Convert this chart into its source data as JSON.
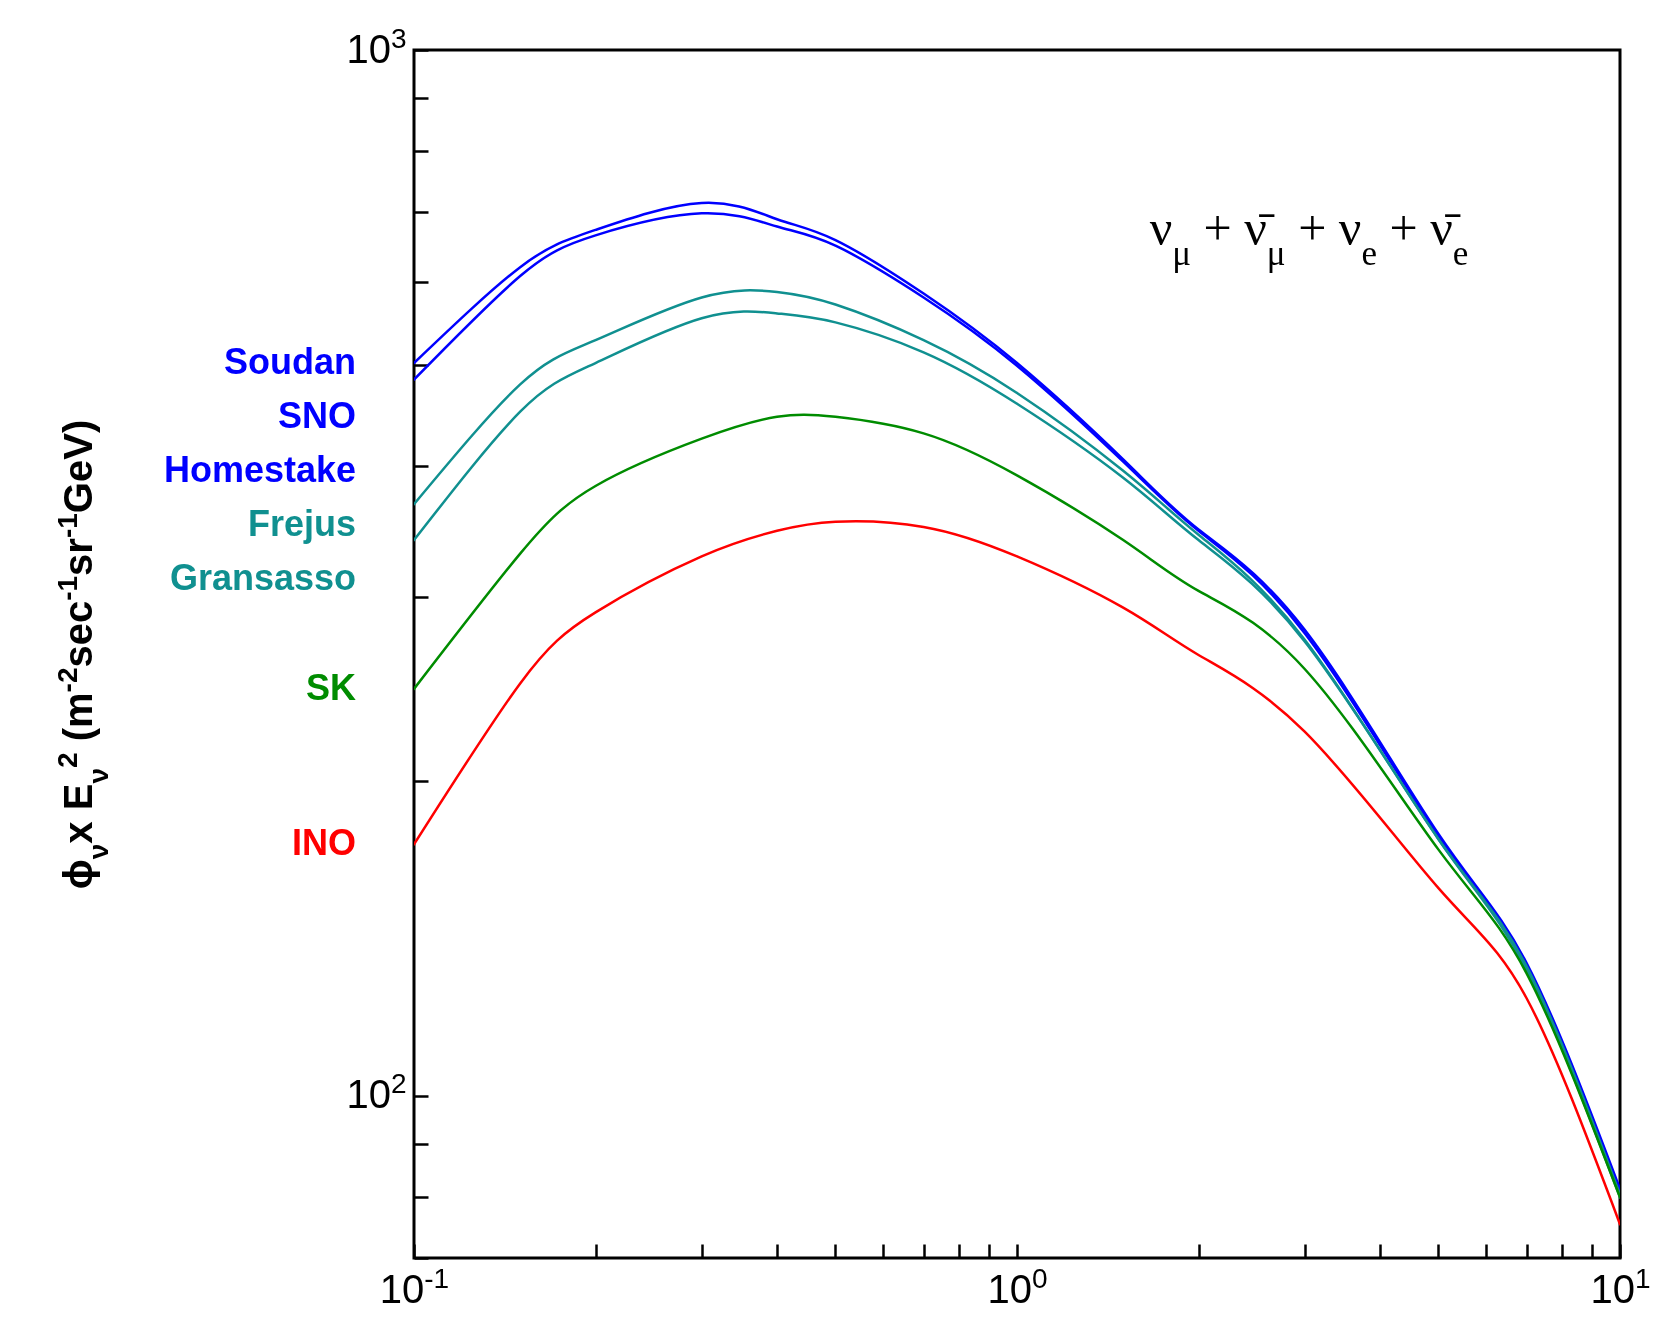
{
  "chart_data": {
    "type": "line",
    "ylabel": "ϕ$_{ν}$x E$_{ν}$$^{2}$ (m$^{-2}$sec$^{-1}$sr$^{-1}$GeV)",
    "annotations": [
      "ν$_{μ}$ + ν̄$_{μ}$ + ν$_{e}$ + ν̄$_{e}$",
      {
        "text": "Homestake",
        "x": 0.1,
        "y": 484
      }
    ],
    "x": [
      0.1,
      0.15,
      0.2,
      0.3,
      0.4,
      0.5,
      0.7,
      1,
      1.5,
      2,
      3,
      5,
      7,
      10
    ],
    "series": [
      {
        "name": "Soudan",
        "color": "#0000ff",
        "values": [
          502,
          620,
          673,
          714,
          689,
          658,
          585,
          502,
          406,
          348,
          279,
          178,
          134,
          81.5
        ]
      },
      {
        "name": "SNO",
        "color": "#0000ff",
        "values": [
          484,
          608,
          665,
          698,
          678,
          650,
          580,
          499,
          404,
          347,
          277,
          177,
          133,
          81
        ]
      },
      {
        "name": "Frejus",
        "color": "#109090",
        "values": [
          368,
          479,
          528,
          580,
          587,
          571,
          528,
          470,
          396,
          344,
          273,
          176,
          133,
          80.5
        ]
      },
      {
        "name": "Gransasso",
        "color": "#109090",
        "values": [
          340,
          451,
          502,
          554,
          560,
          549,
          514,
          459,
          390,
          340,
          272,
          176,
          132,
          80
        ]
      },
      {
        "name": "SK",
        "color": "#008c00",
        "values": [
          245,
          330,
          383,
          425,
          446,
          446,
          430,
          392,
          340,
          304,
          256,
          172,
          131,
          80
        ]
      },
      {
        "name": "INO",
        "color": "#ff0000",
        "values": [
          174,
          248,
          290,
          328,
          347,
          354,
          350,
          328,
          293,
          264,
          223,
          158,
          124,
          75.4
        ]
      }
    ],
    "xlim": [
      0.1,
      10
    ],
    "ylim": [
      70,
      1000
    ],
    "log": "xy",
    "xticks": [
      {
        "value": 0.1,
        "label": "10$^{-1}$"
      },
      {
        "value": 0.2,
        "label": null
      },
      {
        "value": 0.3,
        "label": null
      },
      {
        "value": 0.4,
        "label": null
      },
      {
        "value": 0.5,
        "label": null
      },
      {
        "value": 0.6,
        "label": null
      },
      {
        "value": 0.7,
        "label": null
      },
      {
        "value": 0.8,
        "label": null
      },
      {
        "value": 0.9,
        "label": null
      },
      {
        "value": 1,
        "label": "10$^{0}$"
      },
      {
        "value": 2,
        "label": null
      },
      {
        "value": 3,
        "label": null
      },
      {
        "value": 4,
        "label": null
      },
      {
        "value": 5,
        "label": null
      },
      {
        "value": 6,
        "label": null
      },
      {
        "value": 7,
        "label": null
      },
      {
        "value": 8,
        "label": null
      },
      {
        "value": 9,
        "label": null
      },
      {
        "value": 10,
        "label": "10$^{1}$"
      }
    ],
    "yticks": [
      {
        "value": 70,
        "label": null
      },
      {
        "value": 80,
        "label": null
      },
      {
        "value": 90,
        "label": null
      },
      {
        "value": 100,
        "label": "10$^{2}$"
      },
      {
        "value": 200,
        "label": null
      },
      {
        "value": 300,
        "label": null
      },
      {
        "value": 400,
        "label": null
      },
      {
        "value": 500,
        "label": null
      },
      {
        "value": 600,
        "label": null
      },
      {
        "value": 700,
        "label": null
      },
      {
        "value": 800,
        "label": null
      },
      {
        "value": 900,
        "label": null
      },
      {
        "value": 1000,
        "label": "10$^{3}$"
      }
    ],
    "tick_labels": true
  }
}
